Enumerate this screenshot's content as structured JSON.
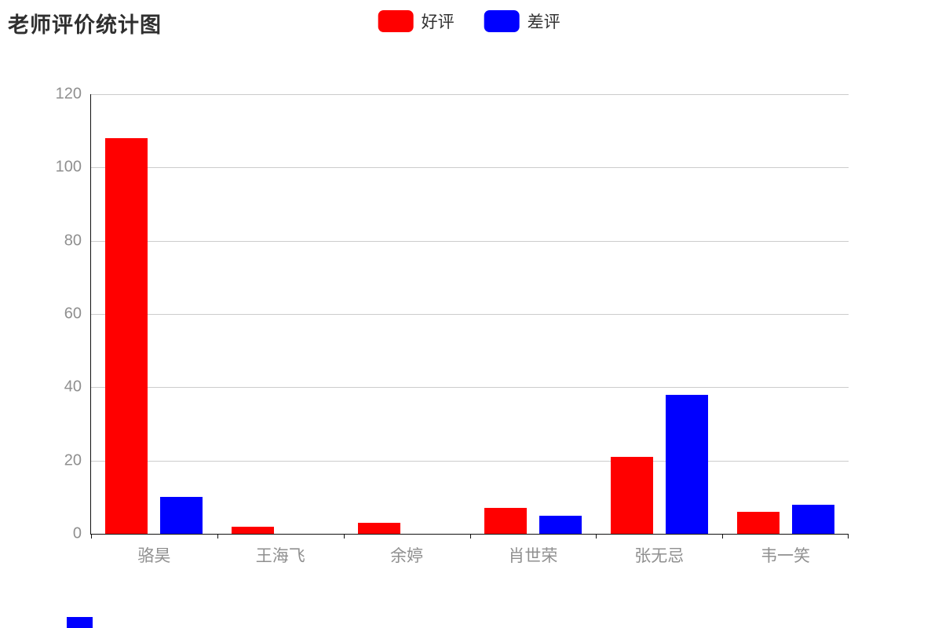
{
  "chart_data": {
    "type": "bar",
    "title": "老师评价统计图",
    "categories": [
      "骆昊",
      "王海飞",
      "余婷",
      "肖世荣",
      "张无忌",
      "韦一笑"
    ],
    "series": [
      {
        "name": "好评",
        "color": "#ff0000",
        "values": [
          108,
          2,
          3,
          7,
          21,
          6
        ]
      },
      {
        "name": "差评",
        "color": "#0000ff",
        "values": [
          10,
          0,
          0,
          5,
          38,
          8
        ]
      }
    ],
    "xlabel": "",
    "ylabel": "",
    "ylim": [
      0,
      120
    ],
    "ytick_step": 20,
    "grid": true,
    "legend_position": "top-center",
    "colors": {
      "title_text": "#2f2f2f",
      "axis_line": "#111111",
      "gridline": "#cccccc",
      "tick_label": "#8f8f8f"
    }
  }
}
